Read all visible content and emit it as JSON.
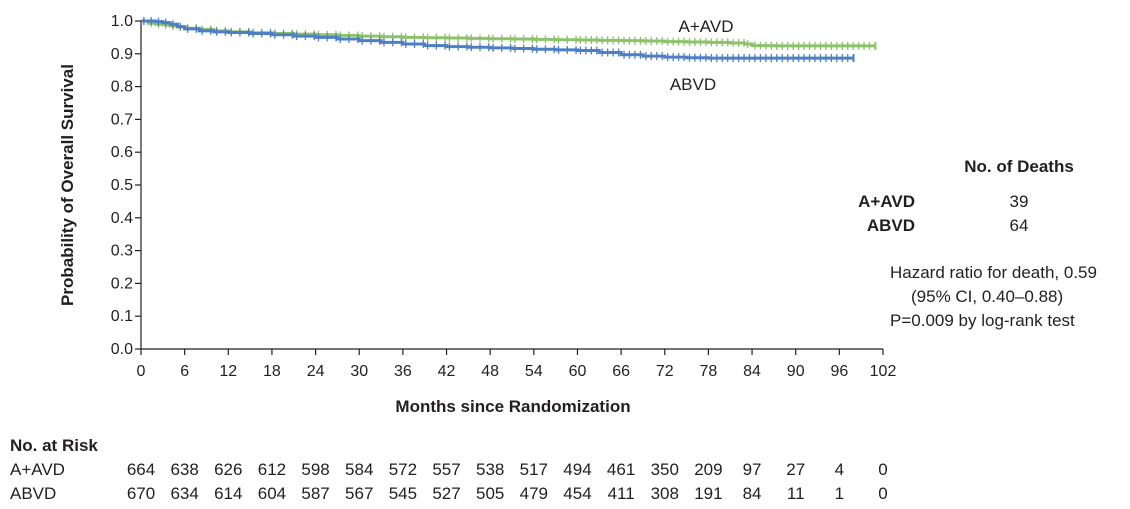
{
  "chart_data": {
    "type": "line",
    "title": "",
    "xlabel": "Months since Randomization",
    "ylabel": "Probability of Overall Survival",
    "xlim": [
      0,
      102
    ],
    "ylim": [
      0,
      1.0
    ],
    "x_ticks": [
      "0",
      "6",
      "12",
      "18",
      "24",
      "30",
      "36",
      "42",
      "48",
      "54",
      "60",
      "66",
      "72",
      "78",
      "84",
      "90",
      "96",
      "102"
    ],
    "y_ticks": [
      "0.0",
      "0.1",
      "0.2",
      "0.3",
      "0.4",
      "0.5",
      "0.6",
      "0.7",
      "0.8",
      "0.9",
      "1.0"
    ],
    "series": [
      {
        "name": "A+AVD",
        "color": "#8dc26a",
        "x": [
          0,
          1,
          2,
          3,
          4,
          5,
          6,
          8,
          10,
          12,
          15,
          18,
          21,
          24,
          27,
          30,
          33,
          36,
          39,
          42,
          45,
          48,
          51,
          54,
          57,
          60,
          63,
          66,
          69,
          72,
          75,
          78,
          81,
          83,
          84,
          87,
          90,
          93,
          96,
          99,
          101
        ],
        "values": [
          1.0,
          0.993,
          0.99,
          0.988,
          0.985,
          0.982,
          0.978,
          0.974,
          0.97,
          0.967,
          0.964,
          0.962,
          0.96,
          0.958,
          0.956,
          0.954,
          0.952,
          0.95,
          0.949,
          0.948,
          0.947,
          0.946,
          0.945,
          0.944,
          0.943,
          0.942,
          0.941,
          0.94,
          0.939,
          0.937,
          0.936,
          0.935,
          0.933,
          0.93,
          0.925,
          0.924,
          0.924,
          0.924,
          0.924,
          0.924,
          0.924
        ]
      },
      {
        "name": "ABVD",
        "color": "#4f7fc3",
        "x": [
          0,
          1,
          2,
          3,
          4,
          5,
          6,
          8,
          10,
          12,
          15,
          18,
          21,
          24,
          27,
          30,
          33,
          36,
          39,
          42,
          45,
          48,
          51,
          54,
          57,
          60,
          63,
          66,
          69,
          72,
          75,
          78,
          81,
          84,
          87,
          90,
          93,
          96,
          98
        ],
        "values": [
          1.0,
          1.0,
          0.998,
          0.995,
          0.99,
          0.983,
          0.976,
          0.97,
          0.967,
          0.965,
          0.962,
          0.958,
          0.954,
          0.95,
          0.945,
          0.94,
          0.935,
          0.93,
          0.925,
          0.922,
          0.92,
          0.918,
          0.916,
          0.914,
          0.912,
          0.91,
          0.904,
          0.897,
          0.893,
          0.89,
          0.888,
          0.887,
          0.887,
          0.887,
          0.887,
          0.887,
          0.887,
          0.887,
          0.887
        ]
      }
    ],
    "series_labels": {
      "a_avd": "A+AVD",
      "abvd": "ABVD"
    },
    "deaths_table": {
      "header": "No. of Deaths",
      "rows": [
        {
          "name": "A+AVD",
          "deaths": "39"
        },
        {
          "name": "ABVD",
          "deaths": "64"
        }
      ]
    },
    "stats_text": [
      "Hazard ratio for death, 0.59",
      "(95% CI, 0.40–0.88)",
      "P=0.009 by log-rank test"
    ],
    "at_risk": {
      "header": "No. at Risk",
      "rows": [
        {
          "name": "A+AVD",
          "values": [
            "664",
            "638",
            "626",
            "612",
            "598",
            "584",
            "572",
            "557",
            "538",
            "517",
            "494",
            "461",
            "350",
            "209",
            "97",
            "27",
            "4",
            "0"
          ]
        },
        {
          "name": "ABVD",
          "values": [
            "670",
            "634",
            "614",
            "604",
            "587",
            "567",
            "545",
            "527",
            "505",
            "479",
            "454",
            "411",
            "308",
            "191",
            "84",
            "11",
            "1",
            "0"
          ]
        }
      ]
    }
  }
}
